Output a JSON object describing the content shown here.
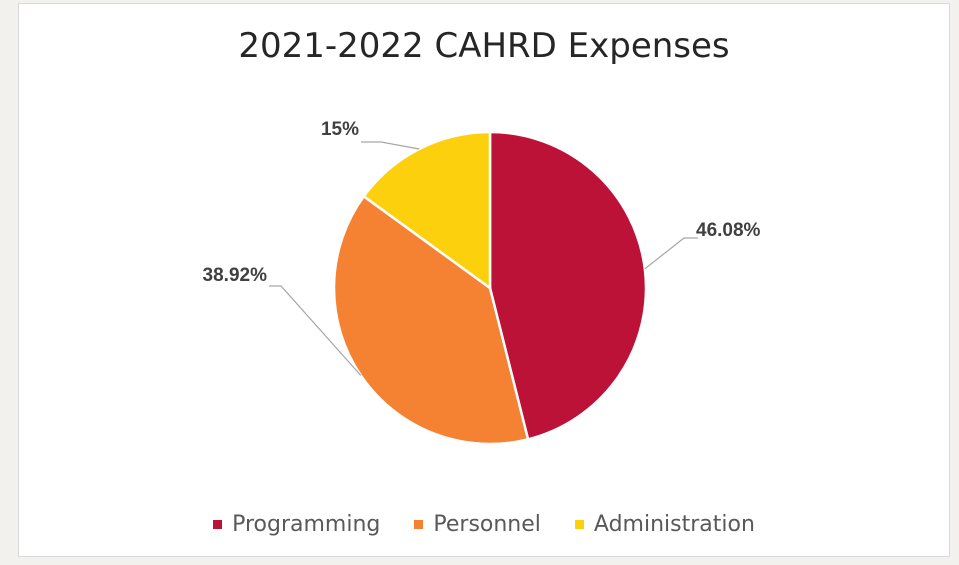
{
  "chart_data": {
    "type": "pie",
    "title": "2021-2022 CAHRD Expenses",
    "slices": [
      {
        "name": "Programming",
        "value": 46.08,
        "label": "46.08%",
        "color": "#BC1237"
      },
      {
        "name": "Personnel",
        "value": 38.92,
        "label": "38.92%",
        "color": "#F58232"
      },
      {
        "name": "Administration",
        "value": 15,
        "label": "15%",
        "color": "#FDD00E"
      }
    ],
    "legend_position": "bottom",
    "start_angle_deg": 0,
    "direction": "clockwise"
  }
}
